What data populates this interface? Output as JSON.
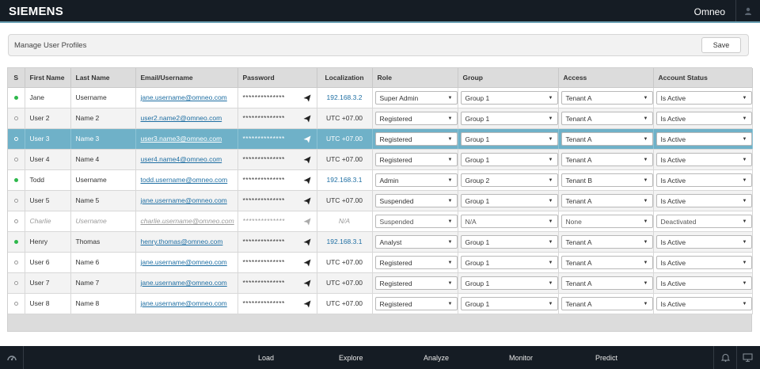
{
  "header": {
    "brand": "SIEMENS",
    "app_name": "Omneo"
  },
  "panel": {
    "title": "Manage User Profiles",
    "save_label": "Save"
  },
  "table": {
    "columns": {
      "s": "S",
      "first_name": "First Name",
      "last_name": "Last Name",
      "email": "Email/Username",
      "password": "Password",
      "localization": "Localization",
      "role": "Role",
      "group": "Group",
      "access": "Access",
      "account_status": "Account Status"
    },
    "rows": [
      {
        "status": "active",
        "first": "Jane",
        "last": "Username",
        "email": "jane.username@omneo.com",
        "password": "**************",
        "loc": "192.168.3.2",
        "role": "Super Admin",
        "group": "Group 1",
        "access": "Tenant A",
        "account": "Is Active"
      },
      {
        "status": "inactive",
        "first": "User 2",
        "last": "Name 2",
        "email": "user2.name2@omneo.com",
        "password": "**************",
        "loc": "UTC +07.00",
        "role": "Registered",
        "group": "Group 1",
        "access": "Tenant A",
        "account": "Is Active"
      },
      {
        "status": "inactive",
        "first": "User 3",
        "last": "Name 3",
        "email": "user3.name3@omneo.com",
        "password": "**************",
        "loc": "UTC +07.00",
        "role": "Registered",
        "group": "Group 1",
        "access": "Tenant A",
        "account": "Is Active"
      },
      {
        "status": "inactive",
        "first": "User 4",
        "last": "Name 4",
        "email": "user4.name4@omneo.com",
        "password": "**************",
        "loc": "UTC +07.00",
        "role": "Registered",
        "group": "Group 1",
        "access": "Tenant A",
        "account": "Is Active"
      },
      {
        "status": "active",
        "first": "Todd",
        "last": "Username",
        "email": "todd.username@omneo.com",
        "password": "**************",
        "loc": "192.168.3.1",
        "role": "Admin",
        "group": "Group 2",
        "access": "Tenant B",
        "account": "Is Active"
      },
      {
        "status": "inactive",
        "first": "User 5",
        "last": "Name 5",
        "email": "jane.username@omneo.com",
        "password": "**************",
        "loc": "UTC +07.00",
        "role": "Suspended",
        "group": "Group 1",
        "access": "Tenant A",
        "account": "Is Active"
      },
      {
        "status": "inactive",
        "first": "Charlie",
        "last": "Username",
        "email": "charlie.username@omneo.com",
        "password": "**************",
        "loc": "N/A",
        "role": "Suspended",
        "group": "N/A",
        "access": "None",
        "account": "Deactivated"
      },
      {
        "status": "active",
        "first": "Henry",
        "last": "Thomas",
        "email": "henry.thomas@omneo.com",
        "password": "**************",
        "loc": "192.168.3.1",
        "role": "Analyst",
        "group": "Group 1",
        "access": "Tenant A",
        "account": "Is Active"
      },
      {
        "status": "inactive",
        "first": "User 6",
        "last": "Name 6",
        "email": "jane.username@omneo.com",
        "password": "**************",
        "loc": "UTC +07.00",
        "role": "Registered",
        "group": "Group 1",
        "access": "Tenant A",
        "account": "Is Active"
      },
      {
        "status": "inactive",
        "first": "User 7",
        "last": "Name 7",
        "email": "jane.username@omneo.com",
        "password": "**************",
        "loc": "UTC +07.00",
        "role": "Registered",
        "group": "Group 1",
        "access": "Tenant A",
        "account": "Is Active"
      },
      {
        "status": "inactive",
        "first": "User 8",
        "last": "Name 8",
        "email": "jane.username@omneo.com",
        "password": "**************",
        "loc": "UTC +07.00",
        "role": "Registered",
        "group": "Group 1",
        "access": "Tenant A",
        "account": "Is Active"
      }
    ],
    "selected_row": "User 3",
    "deactivated_row": "Charlie"
  },
  "footer": {
    "nav": [
      "Load",
      "Explore",
      "Analyze",
      "Monitor",
      "Predict"
    ]
  },
  "colors": {
    "topbar": "#151c24",
    "accent": "#6a9fb2",
    "selected_row": "#6fb1c8",
    "active_dot": "#2db84b",
    "link": "#1f6fa3"
  },
  "icons": {
    "user": "user-icon",
    "send": "send-icon",
    "gauge": "gauge-icon",
    "bell": "bell-icon",
    "screen": "screen-icon",
    "dropdown": "chevron-down-icon"
  }
}
